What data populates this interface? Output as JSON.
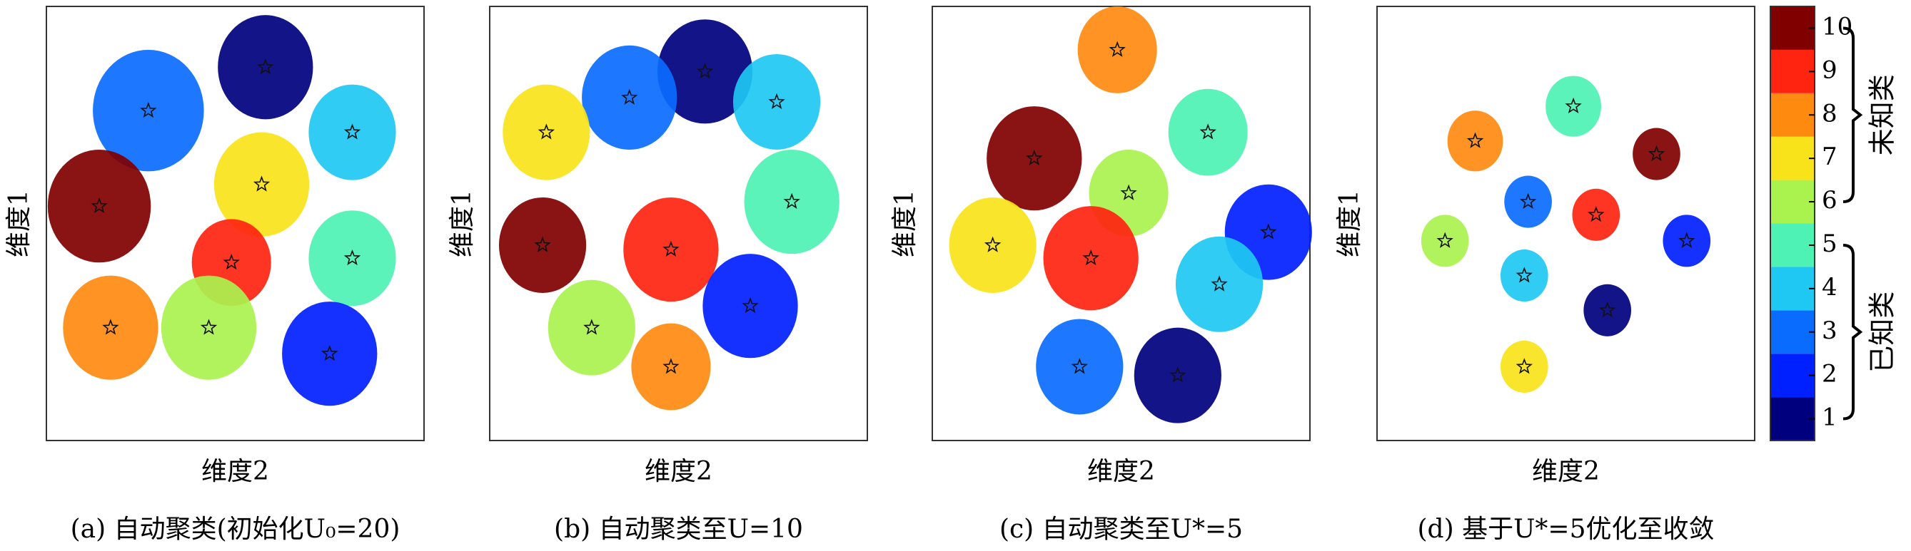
{
  "chart_data": [
    {
      "type": "scatter",
      "xlabel": "维度2",
      "ylabel": "维度1",
      "caption": "(a) 自动聚类(初始化U₀=20)",
      "xlim": [
        0,
        100
      ],
      "ylim": [
        0,
        100
      ],
      "x": [
        58,
        27,
        81,
        57,
        14,
        81,
        49,
        43,
        17,
        75
      ],
      "y": [
        86,
        76,
        71,
        59,
        54,
        42,
        41,
        26,
        26,
        20
      ],
      "size": [
        12,
        14,
        11,
        12,
        13,
        11,
        10,
        12,
        12,
        12
      ],
      "class": [
        1,
        3,
        4,
        7,
        10,
        5,
        9,
        6,
        8,
        2
      ]
    },
    {
      "type": "scatter",
      "xlabel": "维度2",
      "ylabel": "维度1",
      "caption": "(b) 自动聚类至U=10",
      "xlim": [
        0,
        100
      ],
      "ylim": [
        0,
        100
      ],
      "x": [
        57,
        37,
        76,
        15,
        14,
        48,
        80,
        69,
        27,
        48
      ],
      "y": [
        85,
        79,
        78,
        71,
        45,
        44,
        55,
        31,
        26,
        17
      ],
      "size": [
        12,
        12,
        11,
        11,
        11,
        12,
        12,
        12,
        11,
        10
      ],
      "class": [
        1,
        3,
        4,
        7,
        10,
        9,
        5,
        2,
        6,
        8
      ]
    },
    {
      "type": "scatter",
      "xlabel": "维度2",
      "ylabel": "维度1",
      "caption": "(c) 自动聚类至U*=5",
      "xlim": [
        0,
        100
      ],
      "ylim": [
        0,
        100
      ],
      "x": [
        49,
        27,
        73,
        52,
        16,
        42,
        89,
        76,
        39,
        65
      ],
      "y": [
        90,
        65,
        71,
        57,
        45,
        42,
        48,
        36,
        17,
        15
      ],
      "size": [
        10,
        12,
        10,
        10,
        11,
        12,
        11,
        11,
        11,
        11
      ],
      "class": [
        8,
        10,
        5,
        6,
        7,
        9,
        2,
        4,
        3,
        1
      ]
    },
    {
      "type": "scatter",
      "xlabel": "维度2",
      "ylabel": "维度1",
      "caption": "(d) 基于U*=5优化至收敛",
      "xlim": [
        0,
        100
      ],
      "ylim": [
        0,
        100
      ],
      "x": [
        26,
        52,
        74,
        40,
        58,
        82,
        18,
        39,
        61,
        39
      ],
      "y": [
        69,
        77,
        66,
        55,
        52,
        46,
        46,
        38,
        30,
        17
      ],
      "size": [
        7,
        7,
        6,
        6,
        6,
        6,
        6,
        6,
        6,
        6
      ],
      "class": [
        8,
        5,
        10,
        3,
        9,
        2,
        6,
        4,
        1,
        7
      ]
    }
  ],
  "colorbar": {
    "clim": [
      0.5,
      10.5
    ],
    "ticks": [
      1,
      2,
      3,
      4,
      5,
      6,
      7,
      8,
      9,
      10
    ],
    "colors": [
      "#00007f",
      "#0020ff",
      "#0a6cff",
      "#1ec8f2",
      "#4ef2b4",
      "#aaf24e",
      "#f8e31a",
      "#ff8a10",
      "#ff2410",
      "#800000"
    ],
    "groups": [
      {
        "label": "未知类",
        "from": 6,
        "to": 10
      },
      {
        "label": "已知类",
        "from": 1,
        "to": 5
      }
    ]
  }
}
